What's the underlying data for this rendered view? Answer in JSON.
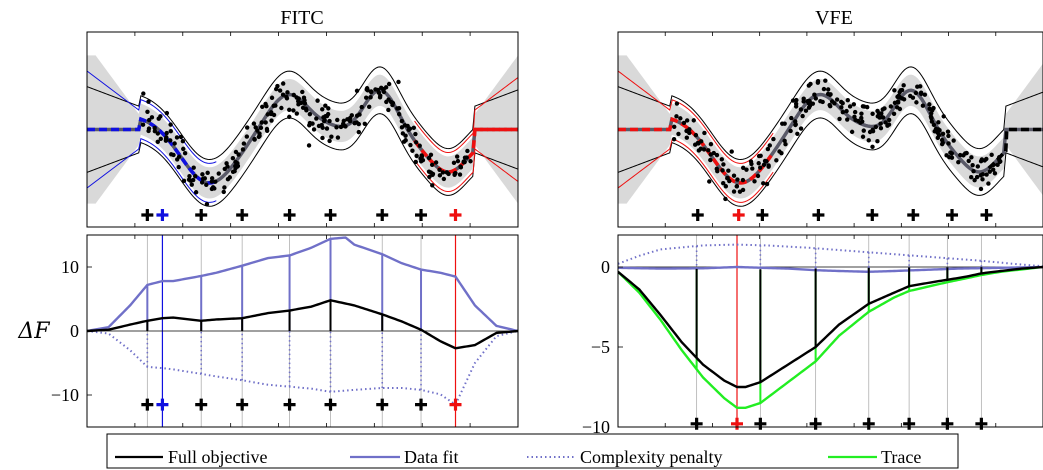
{
  "figure": {
    "colors": {
      "full_objective": "#000000",
      "data_fit": "#7070c8",
      "complexity_penalty": "#7070c8",
      "trace": "#22ee22",
      "fitc_highlight": "#1010e0",
      "vfe_highlight": "#ee1010",
      "band": "#d9d9d9",
      "mean_gray": "#5a5a68",
      "grid": "#b0b0b0"
    },
    "legend": [
      {
        "key": "full_objective",
        "label": "Full objective",
        "style": "solid",
        "color": "#000000"
      },
      {
        "key": "data_fit",
        "label": "Data fit",
        "style": "solid",
        "color": "#7070c8"
      },
      {
        "key": "complexity_penalty",
        "label": "Complexity penalty",
        "style": "dotted",
        "color": "#7070c8"
      },
      {
        "key": "trace",
        "label": "Trace",
        "style": "solid",
        "color": "#22ee22"
      }
    ]
  },
  "chart_data": [
    {
      "type": "line",
      "title": "FITC",
      "panel": "top",
      "description_free": true,
      "ylim": [
        0,
        1
      ],
      "xlim": [
        0,
        1
      ],
      "inducing_points": [
        0.14,
        0.265,
        0.36,
        0.47,
        0.565,
        0.685,
        0.775
      ],
      "removed_point_blue": 0.175,
      "removed_point_red": 0.855,
      "grid": false
    },
    {
      "type": "line",
      "title": "VFE",
      "panel": "top",
      "ylim": [
        0,
        1
      ],
      "xlim": [
        0,
        1
      ],
      "inducing_points": [
        0.185,
        0.335,
        0.465,
        0.59,
        0.685,
        0.775,
        0.855
      ],
      "removed_point_red": 0.28,
      "grid": false
    },
    {
      "type": "line",
      "title": "",
      "panel": "bottom-left",
      "ylabel": "ΔF",
      "ylim": [
        -15,
        15
      ],
      "yticks": [
        -10,
        0,
        10
      ],
      "ytick_labels": [
        "−10",
        "0",
        "10"
      ],
      "series": [
        {
          "name": "Full objective",
          "key": "full_objective",
          "x": [
            0,
            0.05,
            0.1,
            0.14,
            0.175,
            0.2,
            0.265,
            0.3,
            0.36,
            0.42,
            0.47,
            0.52,
            0.565,
            0.62,
            0.685,
            0.73,
            0.775,
            0.82,
            0.855,
            0.9,
            0.95,
            1
          ],
          "y": [
            0,
            0.2,
            1.0,
            1.6,
            2.0,
            2.1,
            1.6,
            1.8,
            2.0,
            2.8,
            3.2,
            3.8,
            4.8,
            4.0,
            2.6,
            1.5,
            0.2,
            -1.6,
            -2.7,
            -2.2,
            -0.3,
            0
          ]
        },
        {
          "name": "Data fit",
          "key": "data_fit",
          "x": [
            0,
            0.05,
            0.1,
            0.14,
            0.175,
            0.2,
            0.265,
            0.3,
            0.36,
            0.42,
            0.47,
            0.52,
            0.565,
            0.6,
            0.62,
            0.685,
            0.73,
            0.775,
            0.82,
            0.855,
            0.9,
            0.95,
            1
          ],
          "y": [
            0,
            0.6,
            4.0,
            7.2,
            7.8,
            7.8,
            8.6,
            9.1,
            10.2,
            11.4,
            11.8,
            13.0,
            14.4,
            14.6,
            13.5,
            12.0,
            10.6,
            9.6,
            9.1,
            8.5,
            4.0,
            0.8,
            0
          ]
        },
        {
          "name": "Complexity penalty",
          "key": "complexity_penalty",
          "x": [
            0,
            0.05,
            0.1,
            0.14,
            0.175,
            0.2,
            0.265,
            0.3,
            0.36,
            0.42,
            0.47,
            0.52,
            0.565,
            0.62,
            0.685,
            0.73,
            0.775,
            0.82,
            0.855,
            0.9,
            0.95,
            1
          ],
          "y": [
            0,
            -0.4,
            -3.0,
            -5.6,
            -5.8,
            -6.0,
            -6.7,
            -7.1,
            -7.7,
            -8.4,
            -8.7,
            -9.0,
            -9.5,
            -9.2,
            -8.9,
            -8.9,
            -9.2,
            -9.9,
            -11.5,
            -5.0,
            -0.8,
            0
          ]
        }
      ],
      "spikes_x": [
        0.14,
        0.265,
        0.36,
        0.47,
        0.565,
        0.685,
        0.775
      ],
      "highlight_blue_x": 0.175,
      "highlight_red_x": 0.855,
      "markers_y": -11.5,
      "grid": "vertical at inducing points"
    },
    {
      "type": "line",
      "title": "",
      "panel": "bottom-right",
      "ylim": [
        -10,
        2
      ],
      "yticks": [
        -10,
        -5,
        0
      ],
      "ytick_labels": [
        "−10",
        "−5",
        "0"
      ],
      "series": [
        {
          "name": "Full objective",
          "key": "full_objective",
          "x": [
            0,
            0.05,
            0.1,
            0.15,
            0.2,
            0.25,
            0.28,
            0.3,
            0.335,
            0.4,
            0.465,
            0.52,
            0.59,
            0.65,
            0.685,
            0.75,
            0.775,
            0.82,
            0.855,
            0.9,
            0.95,
            1
          ],
          "y": [
            -0.3,
            -1.4,
            -3.0,
            -4.7,
            -6.1,
            -7.1,
            -7.5,
            -7.5,
            -7.2,
            -6.1,
            -5.0,
            -3.6,
            -2.3,
            -1.6,
            -1.2,
            -0.9,
            -0.8,
            -0.6,
            -0.4,
            -0.25,
            -0.1,
            0
          ]
        },
        {
          "name": "Data fit",
          "key": "data_fit",
          "x": [
            0,
            0.1,
            0.2,
            0.28,
            0.4,
            0.465,
            0.52,
            0.59,
            0.65,
            0.7,
            0.8,
            0.9,
            1
          ],
          "y": [
            -0.05,
            -0.1,
            -0.08,
            0.0,
            -0.1,
            -0.2,
            -0.25,
            -0.3,
            -0.25,
            -0.2,
            -0.1,
            -0.05,
            0
          ]
        },
        {
          "name": "Complexity penalty",
          "key": "complexity_penalty",
          "x": [
            0,
            0.05,
            0.1,
            0.2,
            0.28,
            0.35,
            0.45,
            0.55,
            0.65,
            0.75,
            0.85,
            0.95,
            1
          ],
          "y": [
            0.2,
            0.7,
            1.1,
            1.35,
            1.4,
            1.35,
            1.2,
            1.0,
            0.8,
            0.6,
            0.4,
            0.15,
            0.05
          ]
        },
        {
          "name": "Trace",
          "key": "trace",
          "x": [
            0,
            0.05,
            0.1,
            0.15,
            0.2,
            0.25,
            0.28,
            0.3,
            0.335,
            0.4,
            0.465,
            0.52,
            0.59,
            0.65,
            0.685,
            0.75,
            0.775,
            0.82,
            0.855,
            0.9,
            0.95,
            1
          ],
          "y": [
            -0.3,
            -1.6,
            -3.3,
            -5.2,
            -6.9,
            -8.2,
            -8.8,
            -8.8,
            -8.5,
            -7.2,
            -5.9,
            -4.3,
            -2.8,
            -1.9,
            -1.5,
            -1.1,
            -0.95,
            -0.7,
            -0.5,
            -0.3,
            -0.15,
            0
          ]
        }
      ],
      "spikes_x": [
        0.185,
        0.335,
        0.465,
        0.59,
        0.685,
        0.775,
        0.855
      ],
      "highlight_red_x": 0.28,
      "markers_y": -9.8,
      "grid": "vertical at inducing points"
    }
  ]
}
